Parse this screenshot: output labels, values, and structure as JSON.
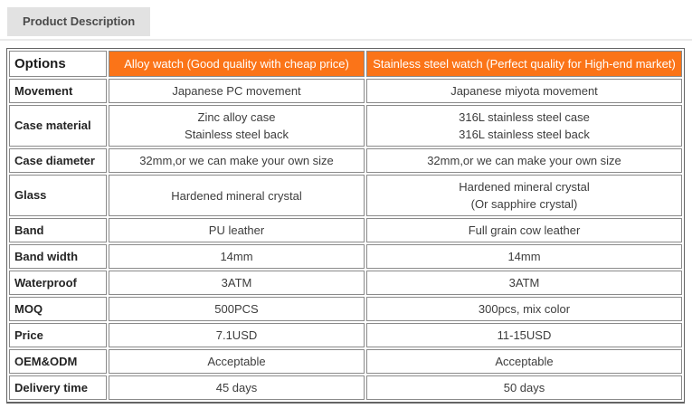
{
  "colors": {
    "accent_orange": "#fb7418",
    "tab_bg": "#e2e2e2",
    "outer_border": "#636363",
    "cell_border": "#8a8a8a"
  },
  "tab": {
    "label": "Product Description"
  },
  "table": {
    "corner_label": "Options",
    "columns": [
      {
        "title": "Alloy watch",
        "subtitle": "(Good quality with cheap price)"
      },
      {
        "title": "Stainless steel watch",
        "subtitle": "(Perfect quality for High-end market)"
      }
    ],
    "rows": [
      {
        "label": "Movement",
        "alloy": [
          "Japanese PC movement"
        ],
        "steel": [
          "Japanese miyota movement"
        ]
      },
      {
        "label": "Case material",
        "alloy": [
          "Zinc alloy case",
          "Stainless steel back"
        ],
        "steel": [
          "316L stainless steel case",
          "316L stainless steel back"
        ]
      },
      {
        "label": "Case diameter",
        "alloy": [
          "32mm,or we can make your own size"
        ],
        "steel": [
          "32mm,or we can make your own size"
        ]
      },
      {
        "label": "Glass",
        "alloy": [
          "Hardened mineral crystal"
        ],
        "steel": [
          "Hardened mineral crystal",
          "(Or sapphire crystal)"
        ]
      },
      {
        "label": "Band",
        "alloy": [
          "PU leather"
        ],
        "steel": [
          "Full grain cow leather"
        ]
      },
      {
        "label": "Band width",
        "alloy": [
          "14mm"
        ],
        "steel": [
          "14mm"
        ]
      },
      {
        "label": "Waterproof",
        "alloy": [
          "3ATM"
        ],
        "steel": [
          "3ATM"
        ]
      },
      {
        "label": "MOQ",
        "alloy": [
          "500PCS"
        ],
        "steel": [
          "300pcs, mix color"
        ]
      },
      {
        "label": "Price",
        "alloy": [
          "7.1USD"
        ],
        "steel": [
          "11-15USD"
        ]
      },
      {
        "label": "OEM&ODM",
        "alloy": [
          "Acceptable"
        ],
        "steel": [
          "Acceptable"
        ]
      },
      {
        "label": "Delivery time",
        "alloy": [
          "45 days"
        ],
        "steel": [
          "50 days"
        ]
      }
    ]
  }
}
